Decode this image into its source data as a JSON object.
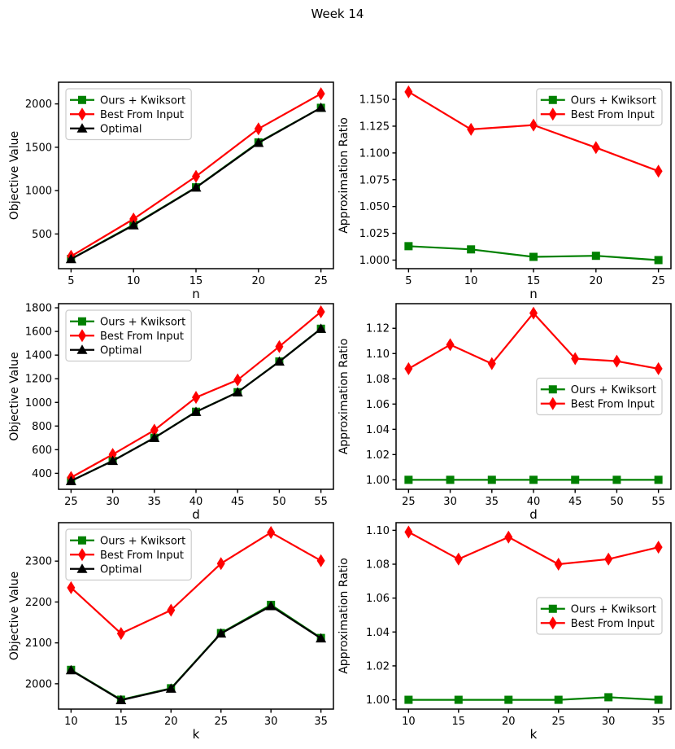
{
  "figure": {
    "title": "Week 14",
    "background": "#ffffff",
    "text_color": "#000000",
    "axis_color": "#000000",
    "legend_border_color": "#cccccc",
    "legend_fill_color": "#ffffff"
  },
  "chart_data": [
    {
      "id": "objective-value-vs-n",
      "type": "line",
      "xlabel": "n",
      "ylabel": "Objective Value",
      "x": [
        5,
        10,
        15,
        20,
        25
      ],
      "xticks": [
        5,
        10,
        15,
        20,
        25
      ],
      "yticks": [
        500,
        1000,
        1500,
        2000
      ],
      "ytick_decimals": 0,
      "xlim": [
        4,
        26
      ],
      "ylim": [
        100,
        2250
      ],
      "grid": false,
      "legend_loc": "upper-left",
      "series": [
        {
          "name": "Ours + Kwiksort",
          "color": "#008000",
          "marker": "square",
          "values": [
            213,
            606,
            1038,
            1556,
            1955
          ]
        },
        {
          "name": "Best From Input",
          "color": "#ff0000",
          "marker": "thin-diamond",
          "values": [
            243,
            673,
            1165,
            1713,
            2117
          ]
        },
        {
          "name": "Optimal",
          "color": "#000000",
          "marker": "triangle-up",
          "values": [
            210,
            600,
            1035,
            1550,
            1955
          ]
        }
      ]
    },
    {
      "id": "approximation-ratio-vs-n",
      "type": "line",
      "xlabel": "n",
      "ylabel": "Approximation Ratio",
      "x": [
        5,
        10,
        15,
        20,
        25
      ],
      "xticks": [
        5,
        10,
        15,
        20,
        25
      ],
      "yticks": [
        1.0,
        1.025,
        1.05,
        1.075,
        1.1,
        1.125,
        1.15
      ],
      "ytick_decimals": 3,
      "xlim": [
        4,
        26
      ],
      "ylim": [
        0.992,
        1.166
      ],
      "grid": false,
      "legend_loc": "upper-right",
      "series": [
        {
          "name": "Ours + Kwiksort",
          "color": "#008000",
          "marker": "square",
          "values": [
            1.013,
            1.01,
            1.003,
            1.004,
            1.0
          ]
        },
        {
          "name": "Best From Input",
          "color": "#ff0000",
          "marker": "thin-diamond",
          "values": [
            1.157,
            1.122,
            1.126,
            1.105,
            1.083
          ]
        }
      ]
    },
    {
      "id": "objective-value-vs-d",
      "type": "line",
      "xlabel": "d",
      "ylabel": "Objective Value",
      "x": [
        25,
        30,
        35,
        40,
        45,
        50,
        55
      ],
      "xticks": [
        25,
        30,
        35,
        40,
        45,
        50,
        55
      ],
      "yticks": [
        400,
        600,
        800,
        1000,
        1200,
        1400,
        1600,
        1800
      ],
      "ytick_decimals": 0,
      "xlim": [
        23.5,
        56.5
      ],
      "ylim": [
        265,
        1835
      ],
      "grid": false,
      "legend_loc": "upper-left",
      "series": [
        {
          "name": "Ours + Kwiksort",
          "color": "#008000",
          "marker": "square",
          "values": [
            336,
            506,
            701,
            921,
            1086,
            1346,
            1623
          ]
        },
        {
          "name": "Best From Input",
          "color": "#ff0000",
          "marker": "thin-diamond",
          "values": [
            365,
            560,
            765,
            1042,
            1190,
            1472,
            1766
          ]
        },
        {
          "name": "Optimal",
          "color": "#000000",
          "marker": "triangle-up",
          "values": [
            335,
            505,
            700,
            920,
            1085,
            1345,
            1622
          ]
        }
      ]
    },
    {
      "id": "approximation-ratio-vs-d",
      "type": "line",
      "xlabel": "d",
      "ylabel": "Approximation Ratio",
      "x": [
        25,
        30,
        35,
        40,
        45,
        50,
        55
      ],
      "xticks": [
        25,
        30,
        35,
        40,
        45,
        50,
        55
      ],
      "yticks": [
        1.0,
        1.02,
        1.04,
        1.06,
        1.08,
        1.1,
        1.12
      ],
      "ytick_decimals": 2,
      "xlim": [
        23.5,
        56.5
      ],
      "ylim": [
        0.9925,
        1.1395
      ],
      "grid": false,
      "legend_loc": "center-right",
      "series": [
        {
          "name": "Ours + Kwiksort",
          "color": "#008000",
          "marker": "square",
          "values": [
            1.0,
            1.0,
            1.0,
            1.0,
            1.0,
            1.0,
            1.0
          ]
        },
        {
          "name": "Best From Input",
          "color": "#ff0000",
          "marker": "thin-diamond",
          "values": [
            1.088,
            1.107,
            1.092,
            1.132,
            1.096,
            1.094,
            1.088
          ]
        }
      ]
    },
    {
      "id": "objective-value-vs-k",
      "type": "line",
      "xlabel": "k",
      "ylabel": "Objective Value",
      "x": [
        10,
        15,
        20,
        25,
        30,
        35
      ],
      "xticks": [
        10,
        15,
        20,
        25,
        30,
        35
      ],
      "yticks": [
        2000,
        2100,
        2200,
        2300
      ],
      "ytick_decimals": 0,
      "xlim": [
        8.75,
        36.25
      ],
      "ylim": [
        1938,
        2394
      ],
      "grid": false,
      "legend_loc": "upper-left",
      "series": [
        {
          "name": "Ours + Kwiksort",
          "color": "#008000",
          "marker": "square",
          "values": [
            2034,
            1961,
            1989,
            2124,
            2193,
            2112
          ]
        },
        {
          "name": "Best From Input",
          "color": "#ff0000",
          "marker": "thin-diamond",
          "values": [
            2235,
            2123,
            2180,
            2294,
            2370,
            2301
          ]
        },
        {
          "name": "Optimal",
          "color": "#000000",
          "marker": "triangle-up",
          "values": [
            2033,
            1960,
            1988,
            2123,
            2190,
            2111
          ]
        }
      ]
    },
    {
      "id": "approximation-ratio-vs-k",
      "type": "line",
      "xlabel": "k",
      "ylabel": "Approximation Ratio",
      "x": [
        10,
        15,
        20,
        25,
        30,
        35
      ],
      "xticks": [
        10,
        15,
        20,
        25,
        30,
        35
      ],
      "yticks": [
        1.0,
        1.02,
        1.04,
        1.06,
        1.08,
        1.1
      ],
      "ytick_decimals": 2,
      "xlim": [
        8.75,
        36.25
      ],
      "ylim": [
        0.9945,
        1.1045
      ],
      "grid": false,
      "legend_loc": "center-right",
      "series": [
        {
          "name": "Ours + Kwiksort",
          "color": "#008000",
          "marker": "square",
          "values": [
            1.0,
            1.0,
            1.0,
            1.0,
            1.0015,
            1.0
          ]
        },
        {
          "name": "Best From Input",
          "color": "#ff0000",
          "marker": "thin-diamond",
          "values": [
            1.099,
            1.083,
            1.096,
            1.08,
            1.083,
            1.09
          ]
        }
      ]
    }
  ]
}
